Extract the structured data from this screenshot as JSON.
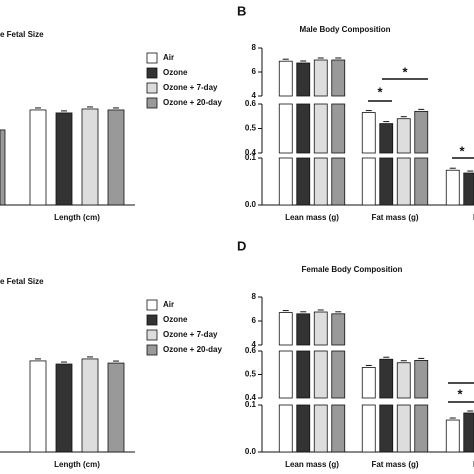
{
  "chart_data": [
    {
      "type": "bar",
      "panel": null,
      "title": "e Fetal Size",
      "xlabel": null,
      "categories": [
        null,
        "Length (cm)"
      ],
      "series": [
        {
          "name": "Air",
          "color": "#ffffff",
          "values": [
            null,
            5.76
          ]
        },
        {
          "name": "Ozone",
          "color": "#333333",
          "values": [
            null,
            5.58
          ]
        },
        {
          "name": "Ozone + 7-day",
          "color": "#dddddd",
          "values": [
            null,
            5.82
          ]
        },
        {
          "name": "Ozone + 20-day",
          "color": "#999999",
          "values": [
            4.55,
            5.76
          ]
        }
      ],
      "ylim": [
        0,
        10
      ],
      "legend": true
    },
    {
      "type": "bar",
      "panel": "B",
      "title": "Male Body Composition",
      "categories": [
        "Lean mass (g)",
        "Fat mass (g)",
        "Fat"
      ],
      "series": [
        {
          "name": "Air",
          "color": "#ffffff",
          "values": [
            6.9,
            0.565,
            0.074
          ]
        },
        {
          "name": "Ozone",
          "color": "#333333",
          "values": [
            6.75,
            0.52,
            0.068
          ]
        },
        {
          "name": "Ozone + 7-day",
          "color": "#dddddd",
          "values": [
            7.0,
            0.54,
            null
          ]
        },
        {
          "name": "Ozone + 20-day",
          "color": "#999999",
          "values": [
            7.0,
            0.57,
            null
          ]
        }
      ],
      "y_segments": [
        {
          "ylim": [
            4,
            8
          ],
          "yticks": [
            4,
            6,
            8
          ]
        },
        {
          "ylim": [
            0.4,
            0.6
          ],
          "yticks": [
            0.4,
            0.5,
            0.6
          ]
        },
        {
          "ylim": [
            0,
            0.1
          ],
          "yticks": [
            {
              "value": 0,
              "label": "0.0"
            },
            0.1
          ]
        }
      ],
      "annotations": [
        "*",
        "*",
        "*"
      ],
      "legend": false
    },
    {
      "type": "bar",
      "panel": null,
      "title": "e Fetal Size",
      "xlabel": null,
      "categories": [
        null,
        "Length (cm)"
      ],
      "series": [
        {
          "name": "Air",
          "color": "#ffffff",
          "values": [
            null,
            5.52
          ]
        },
        {
          "name": "Ozone",
          "color": "#333333",
          "values": [
            null,
            5.33
          ]
        },
        {
          "name": "Ozone + 7-day",
          "color": "#dddddd",
          "values": [
            null,
            5.64
          ]
        },
        {
          "name": "Ozone + 20-day",
          "color": "#999999",
          "values": [
            null,
            5.39
          ]
        }
      ],
      "ylim": [
        0,
        10
      ],
      "legend": true
    },
    {
      "type": "bar",
      "panel": "D",
      "title": "Female Body Composition",
      "categories": [
        "Lean mass (g)",
        "Fat mass (g)",
        "Fat"
      ],
      "series": [
        {
          "name": "Air",
          "color": "#ffffff",
          "values": [
            6.7,
            0.53,
            0.068
          ]
        },
        {
          "name": "Ozone",
          "color": "#333333",
          "values": [
            6.6,
            0.565,
            0.083
          ]
        },
        {
          "name": "Ozone + 7-day",
          "color": "#dddddd",
          "values": [
            6.75,
            0.55,
            null
          ]
        },
        {
          "name": "Ozone + 20-day",
          "color": "#999999",
          "values": [
            6.6,
            0.56,
            null
          ]
        }
      ],
      "y_segments": [
        {
          "ylim": [
            4,
            8
          ],
          "yticks": [
            4,
            6,
            8
          ]
        },
        {
          "ylim": [
            0.4,
            0.6
          ],
          "yticks": [
            0.4,
            0.5,
            0.6
          ]
        },
        {
          "ylim": [
            0,
            0.1
          ],
          "yticks": [
            {
              "value": 0,
              "label": "0.0"
            },
            0.1
          ]
        }
      ],
      "annotations": [
        "*"
      ],
      "legend": false
    }
  ]
}
